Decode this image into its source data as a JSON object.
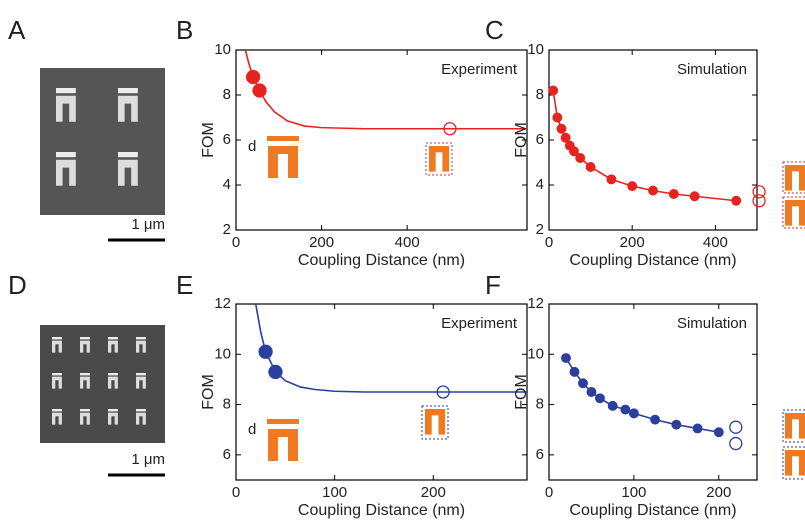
{
  "figure": {
    "panels": [
      "A",
      "B",
      "C",
      "D",
      "E",
      "F"
    ],
    "scale_bars": [
      "1 μm",
      "1 μm"
    ],
    "inset_labels": [
      "d",
      "d"
    ]
  },
  "chart_data": [
    {
      "type": "line",
      "annotation": "Experiment",
      "xlabel": "Coupling Distance (nm)",
      "ylabel": "FOM",
      "xlim": [
        0,
        680
      ],
      "ylim": [
        2,
        10
      ],
      "xticks": [
        0,
        200,
        400
      ],
      "yticks": [
        2,
        4,
        6,
        8,
        10
      ],
      "series": [
        {
          "color": "#e8231f",
          "line": true,
          "marker": "none",
          "x": [
            22,
            30,
            40,
            55,
            70,
            90,
            120,
            160,
            200,
            300,
            400,
            500,
            680
          ],
          "values": [
            10,
            9.4,
            8.8,
            8.2,
            7.7,
            7.25,
            6.85,
            6.62,
            6.55,
            6.5,
            6.5,
            6.5,
            6.5
          ]
        },
        {
          "color": "#e8231f",
          "line": false,
          "marker": "filled",
          "x": [
            40,
            55
          ],
          "values": [
            8.8,
            8.2
          ]
        },
        {
          "color": "#e8231f",
          "line": false,
          "marker": "open",
          "x": [
            500
          ],
          "values": [
            6.5
          ]
        }
      ]
    },
    {
      "type": "line",
      "annotation": "Simulation",
      "xlabel": "Coupling Distance (nm)",
      "ylabel": "FOM",
      "xlim": [
        0,
        500
      ],
      "ylim": [
        2,
        10
      ],
      "xticks": [
        0,
        200,
        400
      ],
      "yticks": [
        2,
        4,
        6,
        8,
        10
      ],
      "series": [
        {
          "color": "#e8231f",
          "line": true,
          "marker": "filled",
          "x": [
            10,
            20,
            30,
            40,
            50,
            60,
            75,
            100,
            150,
            200,
            250,
            300,
            350,
            450
          ],
          "values": [
            8.2,
            7.0,
            6.5,
            6.1,
            5.75,
            5.5,
            5.2,
            4.8,
            4.25,
            3.95,
            3.75,
            3.6,
            3.5,
            3.3
          ]
        },
        {
          "color": "#e8231f",
          "line": false,
          "marker": "open",
          "x": [
            505,
            505
          ],
          "values": [
            3.7,
            3.3
          ]
        }
      ]
    },
    {
      "type": "line",
      "annotation": "Experiment",
      "xlabel": "Coupling Distance (nm)",
      "ylabel": "FOM",
      "xlim": [
        0,
        295
      ],
      "ylim": [
        5,
        12
      ],
      "xticks": [
        0,
        100,
        200
      ],
      "yticks": [
        6,
        8,
        10,
        12
      ],
      "series": [
        {
          "color": "#2b3f9e",
          "line": true,
          "marker": "none",
          "x": [
            20,
            25,
            30,
            40,
            50,
            65,
            80,
            100,
            130,
            160,
            200,
            295
          ],
          "values": [
            12,
            10.9,
            10.1,
            9.3,
            8.95,
            8.7,
            8.6,
            8.53,
            8.5,
            8.5,
            8.5,
            8.5
          ]
        },
        {
          "color": "#2b3f9e",
          "line": false,
          "marker": "filled",
          "x": [
            30,
            40
          ],
          "values": [
            10.1,
            9.3
          ]
        },
        {
          "color": "#2b3f9e",
          "line": false,
          "marker": "open",
          "x": [
            210
          ],
          "values": [
            8.5
          ]
        }
      ]
    },
    {
      "type": "line",
      "annotation": "Simulation",
      "xlabel": "Coupling Distance (nm)",
      "ylabel": "FOM",
      "xlim": [
        0,
        245
      ],
      "ylim": [
        5,
        12
      ],
      "xticks": [
        0,
        100,
        200
      ],
      "yticks": [
        6,
        8,
        10,
        12
      ],
      "series": [
        {
          "color": "#2b3f9e",
          "line": true,
          "marker": "filled",
          "x": [
            20,
            30,
            40,
            50,
            60,
            75,
            90,
            100,
            125,
            150,
            175,
            200
          ],
          "values": [
            9.85,
            9.3,
            8.85,
            8.5,
            8.25,
            7.95,
            7.8,
            7.65,
            7.4,
            7.2,
            7.05,
            6.9
          ]
        },
        {
          "color": "#2b3f9e",
          "line": false,
          "marker": "open",
          "x": [
            220,
            220
          ],
          "values": [
            7.1,
            6.45
          ]
        }
      ]
    }
  ]
}
